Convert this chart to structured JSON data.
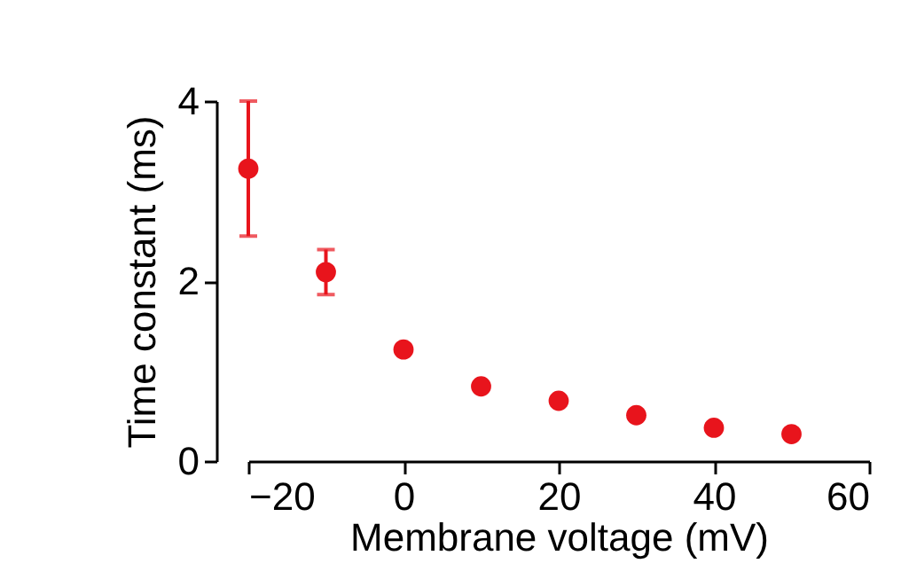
{
  "chart_data": {
    "type": "scatter",
    "xlabel": "Membrane voltage (mV)",
    "ylabel": "Time constant (ms)",
    "x": [
      -20,
      -10,
      0,
      10,
      20,
      30,
      40,
      50
    ],
    "series": [
      {
        "color": "#e8141c",
        "values": [
          3.25,
          2.1,
          1.24,
          0.83,
          0.67,
          0.51,
          0.37,
          0.3
        ],
        "errors": [
          0.75,
          0.25,
          null,
          null,
          null,
          null,
          null,
          null
        ]
      }
    ],
    "xlim": [
      -20,
      60
    ],
    "xticks": [
      -20,
      0,
      20,
      40,
      60
    ],
    "ylim": [
      0,
      4
    ],
    "yticks": [
      0,
      2,
      4
    ],
    "grid": false,
    "marker": "circle"
  }
}
